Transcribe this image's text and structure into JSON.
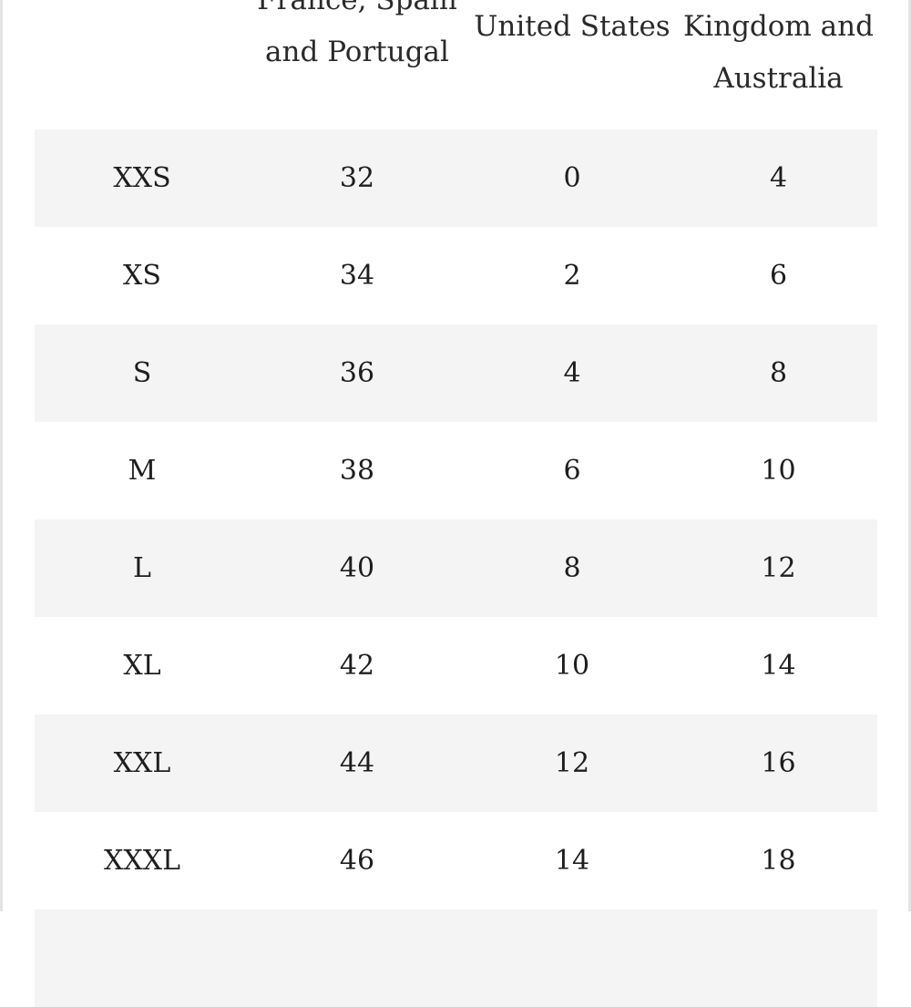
{
  "table": {
    "headers": [
      "",
      "France, Spain\nand Portugal",
      "United States",
      "Kingdom and\nAustralia"
    ],
    "rows": [
      [
        "XXS",
        "32",
        "0",
        "4"
      ],
      [
        "XS",
        "34",
        "2",
        "6"
      ],
      [
        "S",
        "36",
        "4",
        "8"
      ],
      [
        "M",
        "38",
        "6",
        "10"
      ],
      [
        "L",
        "40",
        "8",
        "12"
      ],
      [
        "XL",
        "42",
        "10",
        "14"
      ],
      [
        "XXL",
        "44",
        "12",
        "16"
      ],
      [
        "XXXL",
        "46",
        "14",
        "18"
      ],
      [
        "",
        "",
        "",
        ""
      ]
    ]
  },
  "colors": {
    "row_stripe": "#f4f4f4",
    "row_plain": "#ffffff",
    "text": "#222222",
    "frame": "#e3e3e3"
  }
}
